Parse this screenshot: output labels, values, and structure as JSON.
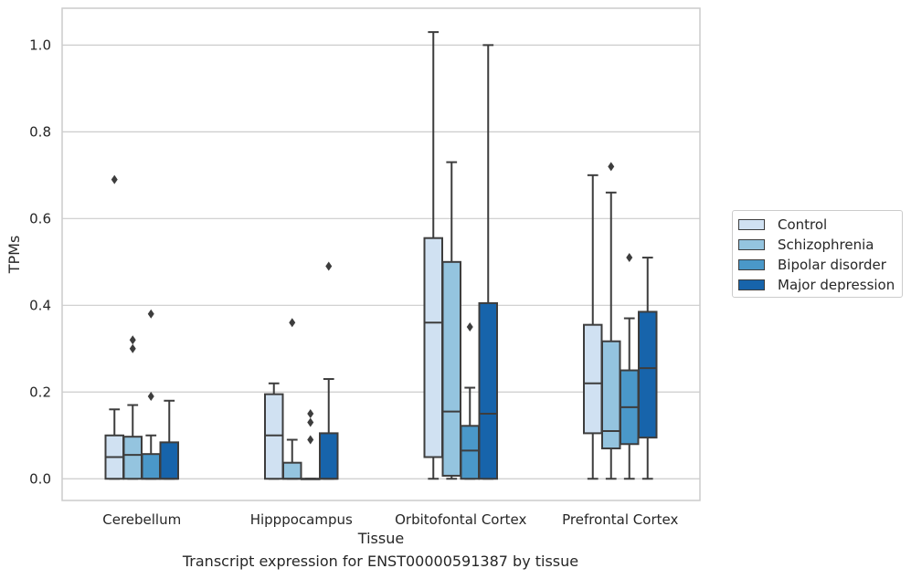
{
  "caption": "Transcript expression for ENST00000591387 by tissue",
  "chart_data": {
    "type": "box",
    "title": "",
    "xlabel": "Tissue",
    "ylabel": "TPMs",
    "ylim": [
      -0.05,
      1.085
    ],
    "yticks": [
      "0.0",
      "0.2",
      "0.4",
      "0.6",
      "0.8",
      "1.0"
    ],
    "grid": "horizontal",
    "legend_position": "right",
    "categories": [
      "Cerebellum",
      "Hipppocampus",
      "Orbitofontal Cortex",
      "Prefrontal Cortex"
    ],
    "series": [
      {
        "name": "Control",
        "color": "#d0e1f2",
        "boxes": [
          {
            "whislo": 0.0,
            "q1": 0.0,
            "med": 0.05,
            "q3": 0.1,
            "whishi": 0.16,
            "fliers": [
              0.69
            ]
          },
          {
            "whislo": 0.0,
            "q1": 0.0,
            "med": 0.1,
            "q3": 0.195,
            "whishi": 0.22,
            "fliers": []
          },
          {
            "whislo": 0.0,
            "q1": 0.05,
            "med": 0.36,
            "q3": 0.555,
            "whishi": 1.03,
            "fliers": []
          },
          {
            "whislo": 0.0,
            "q1": 0.105,
            "med": 0.22,
            "q3": 0.355,
            "whishi": 0.7,
            "fliers": []
          }
        ]
      },
      {
        "name": "Schizophrenia",
        "color": "#94c4df",
        "boxes": [
          {
            "whislo": 0.0,
            "q1": 0.0,
            "med": 0.055,
            "q3": 0.097,
            "whishi": 0.17,
            "fliers": [
              0.32,
              0.3
            ]
          },
          {
            "whislo": 0.0,
            "q1": 0.0,
            "med": 0.0,
            "q3": 0.037,
            "whishi": 0.09,
            "fliers": [
              0.36
            ]
          },
          {
            "whislo": 0.0,
            "q1": 0.007,
            "med": 0.155,
            "q3": 0.5,
            "whishi": 0.73,
            "fliers": []
          },
          {
            "whislo": 0.0,
            "q1": 0.07,
            "med": 0.11,
            "q3": 0.317,
            "whishi": 0.66,
            "fliers": [
              0.72
            ]
          }
        ]
      },
      {
        "name": "Bipolar disorder",
        "color": "#4a98c9",
        "boxes": [
          {
            "whislo": 0.0,
            "q1": 0.0,
            "med": 0.0,
            "q3": 0.057,
            "whishi": 0.1,
            "fliers": [
              0.38,
              0.19
            ]
          },
          {
            "whislo": 0.0,
            "q1": 0.0,
            "med": 0.0,
            "q3": 0.0,
            "whishi": 0.0,
            "fliers": [
              0.15,
              0.13,
              0.09
            ]
          },
          {
            "whislo": 0.0,
            "q1": 0.0,
            "med": 0.065,
            "q3": 0.122,
            "whishi": 0.21,
            "fliers": [
              0.35
            ]
          },
          {
            "whislo": 0.0,
            "q1": 0.08,
            "med": 0.165,
            "q3": 0.25,
            "whishi": 0.37,
            "fliers": [
              0.51
            ]
          }
        ]
      },
      {
        "name": "Major depression",
        "color": "#1764ab",
        "boxes": [
          {
            "whislo": 0.0,
            "q1": 0.0,
            "med": 0.0,
            "q3": 0.084,
            "whishi": 0.18,
            "fliers": []
          },
          {
            "whislo": 0.0,
            "q1": 0.0,
            "med": 0.0,
            "q3": 0.105,
            "whishi": 0.23,
            "fliers": [
              0.49
            ]
          },
          {
            "whislo": 0.0,
            "q1": 0.0,
            "med": 0.15,
            "q3": 0.405,
            "whishi": 1.0,
            "fliers": []
          },
          {
            "whislo": 0.0,
            "q1": 0.095,
            "med": 0.255,
            "q3": 0.385,
            "whishi": 0.51,
            "fliers": []
          }
        ]
      }
    ]
  }
}
